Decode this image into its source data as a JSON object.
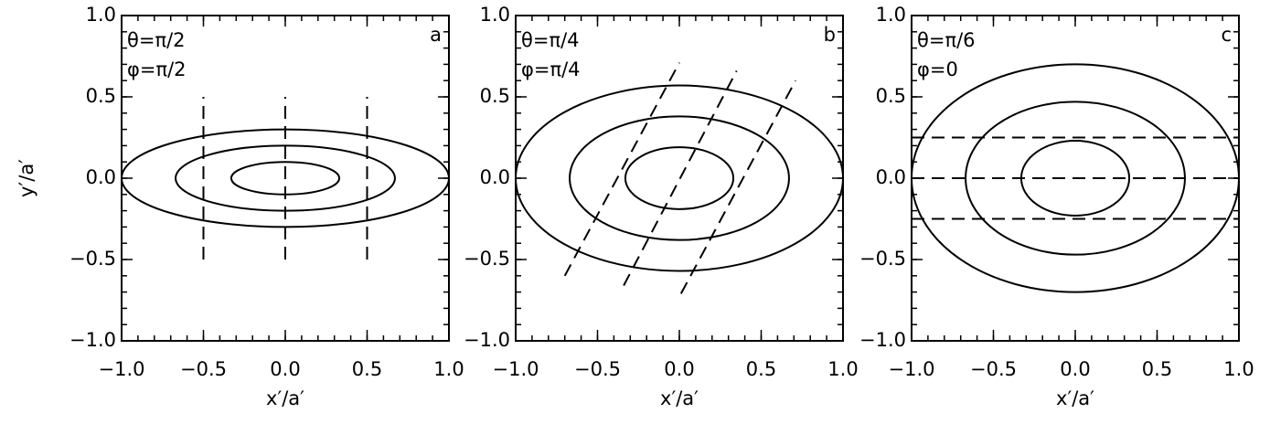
{
  "chart_data": [
    {
      "type": "ellipse",
      "xlabel": "x′/a′",
      "ylabel": "y′/a′",
      "annotations": [
        "θ=π/2",
        "φ=π/2"
      ],
      "panel_label": "a",
      "xlim": [
        -1,
        1
      ],
      "ylim": [
        -1,
        1
      ],
      "minor_step": 0.1,
      "xticks": [
        {
          "value": -1,
          "label": "−1.0"
        },
        {
          "value": -0.5,
          "label": "−0.5"
        },
        {
          "value": 0,
          "label": "0.0"
        },
        {
          "value": 0.5,
          "label": "0.5"
        },
        {
          "value": 1,
          "label": "1.0"
        }
      ],
      "yticks": [
        {
          "value": -1,
          "label": "−1.0"
        },
        {
          "value": -0.5,
          "label": "−0.5"
        },
        {
          "value": 0,
          "label": "0.0"
        },
        {
          "value": 0.5,
          "label": "0.5"
        },
        {
          "value": 1,
          "label": "1.0"
        }
      ],
      "ellipses": [
        {
          "rx": 1.0,
          "ry": 0.3
        },
        {
          "rx": 0.67,
          "ry": 0.2
        },
        {
          "rx": 0.33,
          "ry": 0.1
        }
      ],
      "lines": [
        {
          "x": [
            -0.5,
            -0.5
          ],
          "y": [
            -0.5,
            0.5
          ]
        },
        {
          "x": [
            0,
            0
          ],
          "y": [
            -0.5,
            0.5
          ]
        },
        {
          "x": [
            0.5,
            0.5
          ],
          "y": [
            -0.5,
            0.5
          ]
        }
      ]
    },
    {
      "type": "ellipse",
      "xlabel": "x′/a′",
      "annotations": [
        "θ=π/4",
        "φ=π/4"
      ],
      "panel_label": "b",
      "xlim": [
        -1,
        1
      ],
      "ylim": [
        -1,
        1
      ],
      "minor_step": 0.1,
      "xticks": [
        {
          "value": -1,
          "label": "−1.0"
        },
        {
          "value": -0.5,
          "label": "−0.5"
        },
        {
          "value": 0,
          "label": "0.0"
        },
        {
          "value": 0.5,
          "label": "0.5"
        },
        {
          "value": 1,
          "label": "1.0"
        }
      ],
      "yticks": [
        {
          "value": -1,
          "label": "−1.0"
        },
        {
          "value": -0.5,
          "label": "−0.5"
        },
        {
          "value": 0,
          "label": "0.0"
        },
        {
          "value": 0.5,
          "label": "0.5"
        },
        {
          "value": 1,
          "label": "1.0"
        }
      ],
      "ellipses": [
        {
          "rx": 1.0,
          "ry": 0.57
        },
        {
          "rx": 0.67,
          "ry": 0.38
        },
        {
          "rx": 0.33,
          "ry": 0.19
        }
      ],
      "lines": [
        {
          "x": [
            -0.7,
            0.0
          ],
          "y": [
            -0.6,
            0.71
          ]
        },
        {
          "x": [
            -0.34,
            0.35
          ],
          "y": [
            -0.66,
            0.66
          ]
        },
        {
          "x": [
            0.01,
            0.71
          ],
          "y": [
            -0.71,
            0.6
          ]
        }
      ]
    },
    {
      "type": "ellipse",
      "xlabel": "x′/a′",
      "annotations": [
        "θ=π/6",
        "φ=0"
      ],
      "panel_label": "c",
      "xlim": [
        -1,
        1
      ],
      "ylim": [
        -1,
        1
      ],
      "minor_step": 0.1,
      "xticks": [
        {
          "value": -1,
          "label": "−1.0"
        },
        {
          "value": -0.5,
          "label": "−0.5"
        },
        {
          "value": 0,
          "label": "0.0"
        },
        {
          "value": 0.5,
          "label": "0.5"
        },
        {
          "value": 1,
          "label": "1.0"
        }
      ],
      "yticks": [
        {
          "value": -1,
          "label": "−1.0"
        },
        {
          "value": -0.5,
          "label": "−0.5"
        },
        {
          "value": 0,
          "label": "0.0"
        },
        {
          "value": 0.5,
          "label": "0.5"
        },
        {
          "value": 1,
          "label": "1.0"
        }
      ],
      "ellipses": [
        {
          "rx": 1.0,
          "ry": 0.7
        },
        {
          "rx": 0.67,
          "ry": 0.47
        },
        {
          "rx": 0.33,
          "ry": 0.23
        }
      ],
      "lines": [
        {
          "x": [
            -1,
            1
          ],
          "y": [
            0.25,
            0.25
          ]
        },
        {
          "x": [
            -1,
            1
          ],
          "y": [
            0,
            0
          ]
        },
        {
          "x": [
            -1,
            1
          ],
          "y": [
            -0.25,
            -0.25
          ]
        }
      ]
    }
  ]
}
